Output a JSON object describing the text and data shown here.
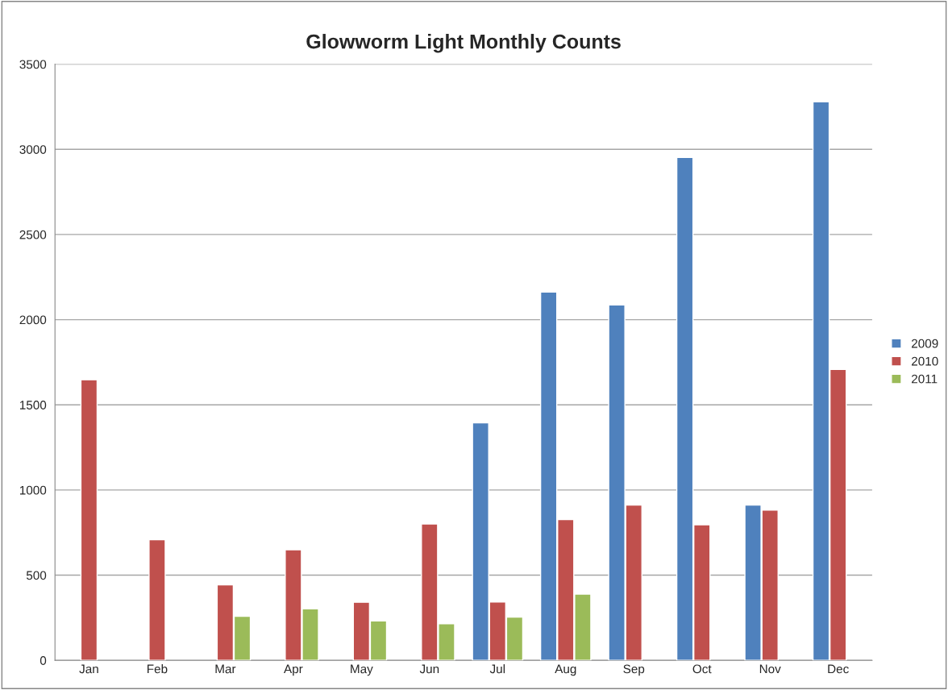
{
  "chart_data": {
    "type": "bar",
    "title": "Glowworm Light Monthly Counts",
    "categories": [
      "Jan",
      "Feb",
      "Mar",
      "Apr",
      "May",
      "Jun",
      "Jul",
      "Aug",
      "Sep",
      "Oct",
      "Nov",
      "Dec"
    ],
    "series": [
      {
        "name": "2009",
        "color": "#4f81bd",
        "values": [
          null,
          null,
          null,
          null,
          null,
          null,
          1394,
          2162,
          2087,
          2953,
          912,
          3279
        ]
      },
      {
        "name": "2010",
        "color": "#c0504d",
        "values": [
          1647,
          708,
          443,
          649,
          341,
          801,
          342,
          826,
          912,
          796,
          882,
          1708
        ]
      },
      {
        "name": "2011",
        "color": "#9bbb59",
        "values": [
          null,
          null,
          258,
          302,
          231,
          215,
          254,
          389,
          null,
          null,
          null,
          null
        ]
      }
    ],
    "ylim": [
      0,
      3500
    ],
    "yticks": [
      0,
      500,
      1000,
      1500,
      2000,
      2500,
      3000,
      3500
    ],
    "grid": "y",
    "legend": "right"
  }
}
